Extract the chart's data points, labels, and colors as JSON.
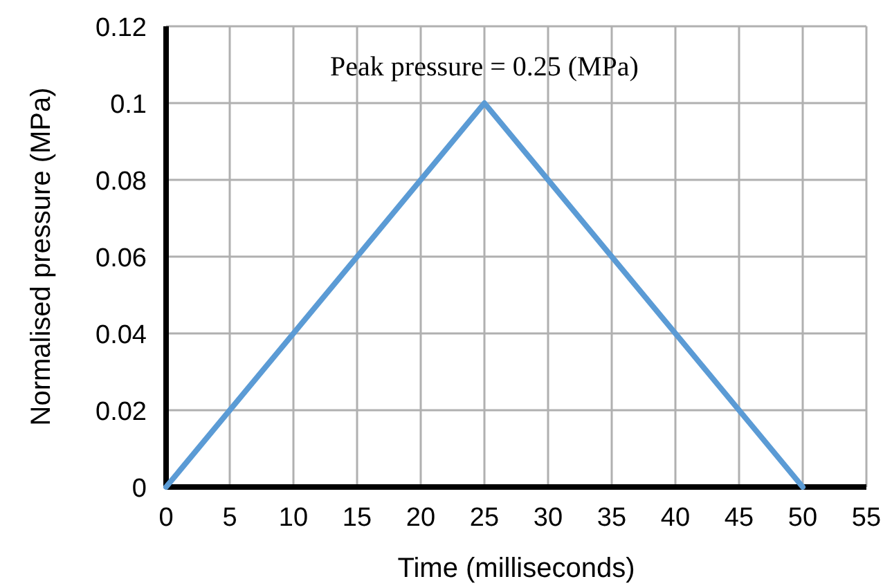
{
  "chart_data": {
    "type": "line",
    "xlabel": "Time (milliseconds)",
    "ylabel": "Normalised pressure (MPa)",
    "x": [
      0,
      25,
      50
    ],
    "series": [
      {
        "color": "#5b9bd5",
        "values": [
          0,
          0.1,
          0
        ]
      }
    ],
    "xlim": [
      0,
      55
    ],
    "xticks": [
      0,
      5,
      10,
      15,
      20,
      25,
      30,
      35,
      40,
      45,
      50,
      55
    ],
    "ylim": [
      0,
      0.12
    ],
    "yticks": [
      0,
      0.02,
      0.04,
      0.06,
      0.08,
      0.1,
      0.12
    ],
    "grid": true,
    "marker": "none",
    "line_style": "solid",
    "annotations": [
      {
        "text": "Peak pressure = 0.25 (MPa)",
        "x": 25,
        "y": 0.1
      }
    ]
  }
}
